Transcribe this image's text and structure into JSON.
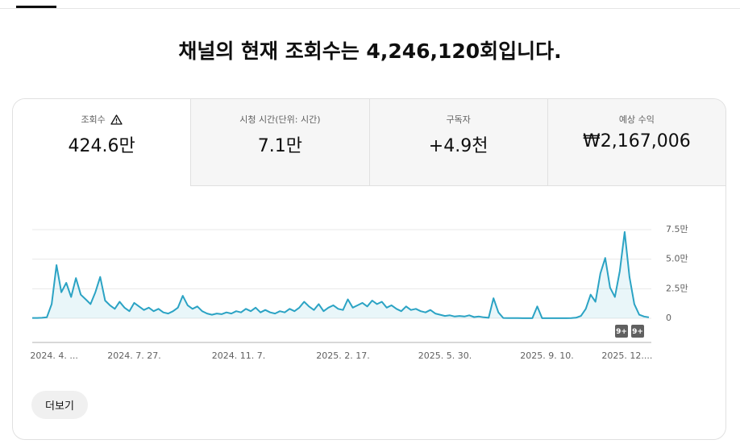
{
  "headline": "채널의 현재 조회수는 4,246,120회입니다.",
  "tabs": [
    {
      "label": "조회수",
      "value": "424.6만"
    },
    {
      "label": "시청 시간(단위: 시간)",
      "value": "7.1만"
    },
    {
      "label": "구독자",
      "value": "+4.9천"
    },
    {
      "label": "예상 수익",
      "value": "₩2,167,006"
    }
  ],
  "chart_data": {
    "type": "line",
    "color": "#2ba3c4",
    "grid": true,
    "values": [
      300,
      300,
      400,
      800,
      12000,
      45000,
      22000,
      30000,
      18000,
      34000,
      20000,
      16000,
      12000,
      22000,
      35000,
      15000,
      11000,
      8000,
      14000,
      9000,
      6000,
      13000,
      10000,
      7000,
      9000,
      6000,
      8000,
      5000,
      4000,
      6000,
      9000,
      19000,
      11000,
      8000,
      10000,
      6000,
      4000,
      3000,
      4000,
      3500,
      5000,
      4000,
      6000,
      5000,
      8000,
      6000,
      9000,
      5000,
      7000,
      5000,
      4000,
      6000,
      5000,
      8000,
      6000,
      9000,
      14000,
      10000,
      7000,
      12000,
      6000,
      9000,
      11000,
      8000,
      7000,
      16000,
      9000,
      11000,
      13000,
      10000,
      15000,
      12000,
      14000,
      9000,
      11000,
      8000,
      6000,
      10000,
      7000,
      8000,
      6000,
      5000,
      7000,
      4000,
      3000,
      2000,
      2500,
      1500,
      2000,
      1500,
      2500,
      1000,
      1500,
      800,
      400,
      17000,
      5000,
      300,
      200,
      200,
      200,
      100,
      100,
      100,
      10000,
      100,
      100,
      100,
      100,
      100,
      100,
      200,
      500,
      2000,
      8000,
      20000,
      14000,
      38000,
      51000,
      26000,
      18000,
      40000,
      73000,
      35000,
      12000,
      3000,
      1500,
      800
    ],
    "xlim": [
      0,
      127
    ],
    "xticks": [
      {
        "value": 4.5,
        "label": "2024. 4. ..."
      },
      {
        "value": 21,
        "label": "2024. 7. 27."
      },
      {
        "value": 42.5,
        "label": "2024. 11. 7."
      },
      {
        "value": 64,
        "label": "2025. 2. 17."
      },
      {
        "value": 85,
        "label": "2025. 5. 30."
      },
      {
        "value": 106,
        "label": "2025. 9. 10."
      },
      {
        "value": 122.5,
        "label": "2025. 12...."
      }
    ],
    "ylim": [
      0,
      75000
    ],
    "yticks": [
      {
        "value": 0,
        "label": "0"
      },
      {
        "value": 25000,
        "label": "2.5만"
      },
      {
        "value": 50000,
        "label": "5.0만"
      },
      {
        "value": 75000,
        "label": "7.5만"
      }
    ]
  },
  "badges": [
    "9+",
    "9+"
  ],
  "more_button": "더보기"
}
